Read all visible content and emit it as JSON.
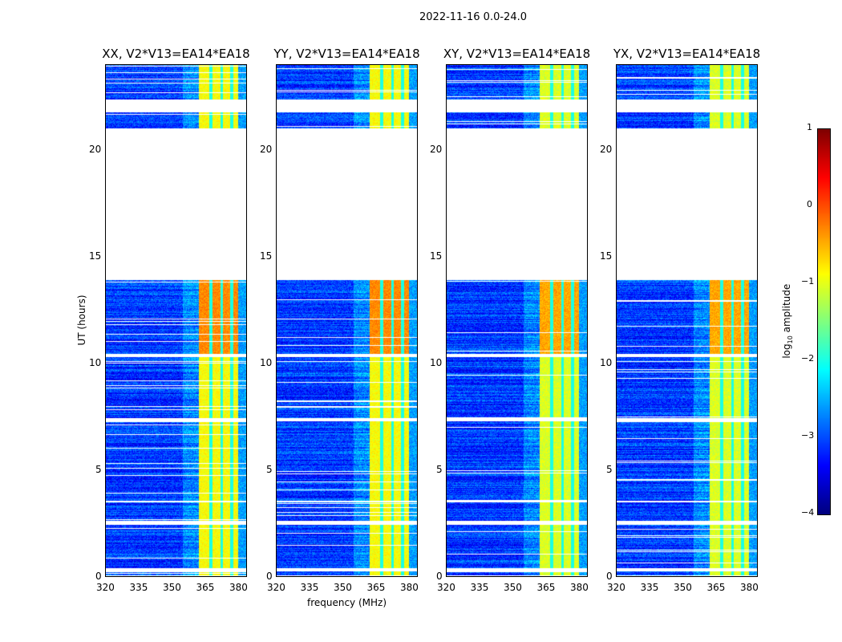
{
  "chart_data": {
    "type": "heatmap",
    "title": "2022-11-16 0.0-24.0",
    "xlabel": "frequency (MHz)",
    "ylabel": "UT (hours)",
    "xlim": [
      320,
      384
    ],
    "ylim": [
      0,
      24
    ],
    "xticks": [
      "320",
      "335",
      "350",
      "365",
      "380"
    ],
    "yticks": [
      "0",
      "5",
      "10",
      "15",
      "20"
    ],
    "panels": [
      {
        "title": "XX, V2*V13=EA14*EA18",
        "level": 1.0
      },
      {
        "title": "YY, V2*V13=EA14*EA18",
        "level": 1.0
      },
      {
        "title": "XY, V2*V13=EA14*EA18",
        "level": 0.85
      },
      {
        "title": "YX, V2*V13=EA14*EA18",
        "level": 0.85
      }
    ],
    "data_segments_hours": [
      [
        0.1,
        0.3
      ],
      [
        0.45,
        2.45
      ],
      [
        2.65,
        3.5
      ],
      [
        3.6,
        7.3
      ],
      [
        7.45,
        10.3
      ],
      [
        10.45,
        13.9
      ],
      [
        21.0,
        21.75
      ],
      [
        22.35,
        24.0
      ]
    ],
    "bright_band_mhz": [
      362,
      380
    ],
    "band_gaps_mhz": [
      367.5,
      372.5,
      377
    ],
    "colorbar": {
      "label": "log10 amplitude",
      "range": [
        -4,
        1
      ],
      "ticks": [
        "1",
        "0",
        "−1",
        "−2",
        "−3",
        "−4"
      ],
      "colormap": "jet"
    }
  }
}
